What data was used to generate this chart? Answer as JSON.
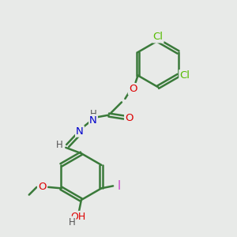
{
  "background_color": "#e8eae8",
  "bond_color": "#3a7a3a",
  "bond_width": 1.8,
  "atom_colors": {
    "Cl": "#55bb00",
    "O": "#dd0000",
    "N": "#0000cc",
    "H": "#555555",
    "I": "#cc44cc",
    "C": "#3a7a3a"
  },
  "font_size": 9.5
}
